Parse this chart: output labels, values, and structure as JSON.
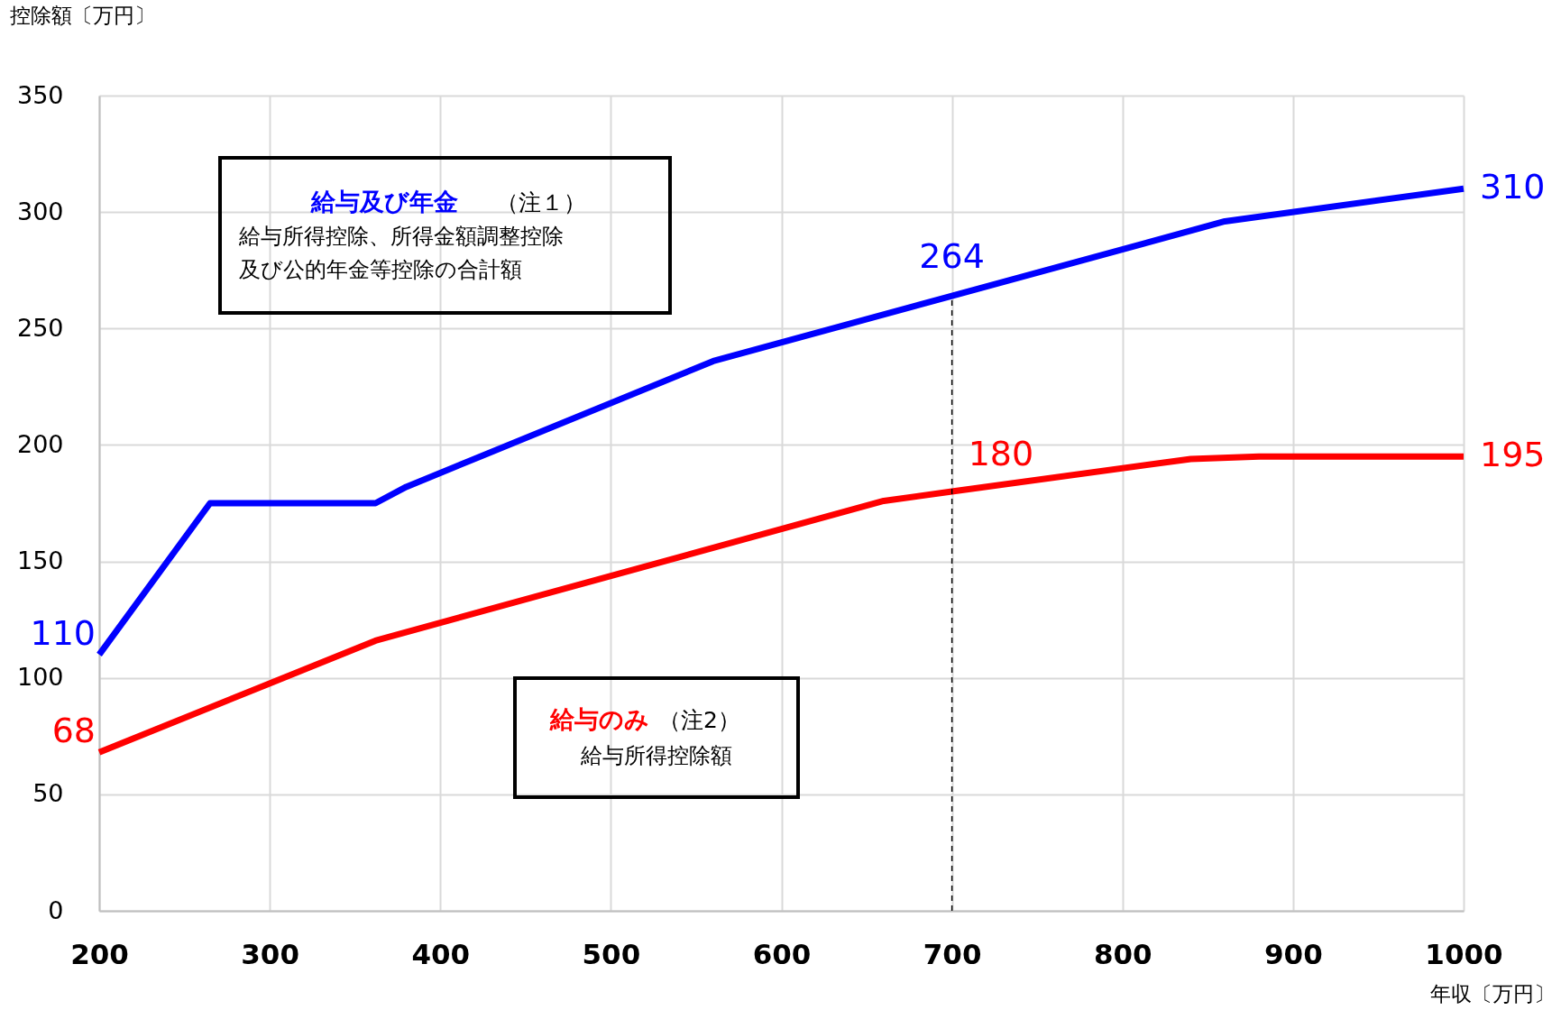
{
  "chart_data": {
    "type": "line",
    "xlabel": "年収〔万円〕",
    "ylabel": "控除額〔万円〕",
    "xlim": [
      200,
      1000
    ],
    "xticks": [
      200,
      300,
      400,
      500,
      600,
      700,
      800,
      900,
      1000
    ],
    "ylim": [
      0,
      350
    ],
    "yticks": [
      0,
      50,
      100,
      150,
      200,
      250,
      300,
      350
    ],
    "grid": true,
    "line_style": "solid",
    "series": [
      {
        "name": "給与及び年金",
        "color": "#0000ff",
        "x": [
          200,
          265,
          362,
          380,
          560,
          700,
          860,
          1000
        ],
        "values": [
          110,
          175,
          175,
          182,
          236,
          264,
          296,
          310
        ],
        "value_labels": [
          "110",
          null,
          null,
          null,
          null,
          "264",
          null,
          "310"
        ]
      },
      {
        "name": "給与のみ",
        "color": "#ff0000",
        "x": [
          200,
          362,
          660,
          700,
          840,
          880,
          1000
        ],
        "values": [
          68,
          116,
          176,
          180,
          194,
          195,
          195
        ],
        "value_labels": [
          "68",
          null,
          null,
          "180",
          null,
          null,
          "195"
        ]
      }
    ],
    "ref_lines": [
      {
        "axis": "x",
        "value": 700,
        "color": "#000000",
        "line_style": "dashed"
      }
    ],
    "annotations": [
      "（注１）",
      "給与所得控除、所得金額調整控除",
      "及び公的年金等控除の合計額",
      "（注2）",
      "給与所得控除額"
    ]
  }
}
